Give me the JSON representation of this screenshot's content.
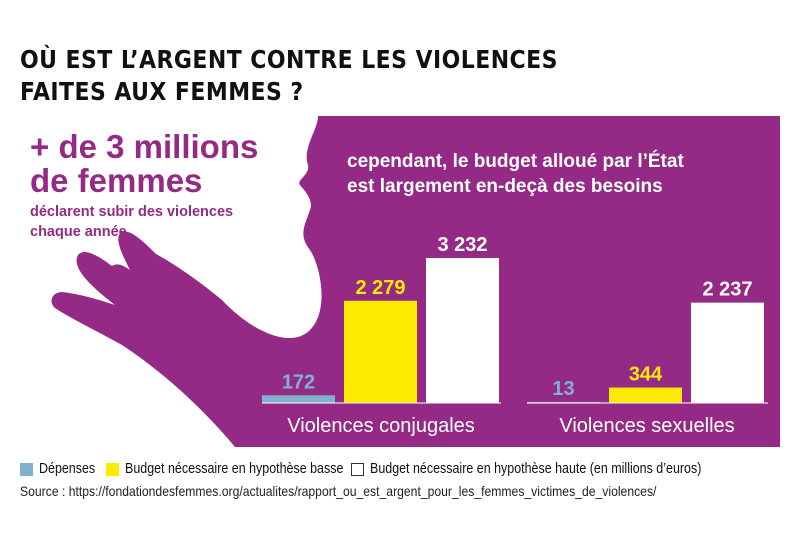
{
  "title": {
    "line1": "OÙ EST L’ARGENT CONTRE LES VIOLENCES",
    "line2": "FAITES AUX FEMMES ?"
  },
  "stat": {
    "big_line1": "+ de 3 millions",
    "big_line2": "de femmes",
    "small_line1": "déclarent subir des violences",
    "small_line2": "chaque année"
  },
  "subhead": {
    "line1": "cependant, le budget alloué par l’État",
    "line2": "est largement en-deçà des besoins"
  },
  "colors": {
    "purple": "#952a86",
    "blue": "#7fb2cd",
    "yellow": "#fcea00",
    "white": "#ffffff"
  },
  "chart_data": {
    "type": "bar",
    "categories": [
      "Violences conjugales",
      "Violences sexuelles"
    ],
    "series": [
      {
        "name": "Dépenses",
        "values": [
          172,
          13
        ],
        "labels": [
          "172",
          "13"
        ]
      },
      {
        "name": "Budget nécessaire en hypothèse basse",
        "values": [
          2279,
          344
        ],
        "labels": [
          "2 279",
          "344"
        ]
      },
      {
        "name": "Budget nécessaire en hypothèse haute (en millions d’euros)",
        "values": [
          3232,
          2237
        ],
        "labels": [
          "3 232",
          "2 237"
        ]
      }
    ],
    "legend_position": "bottom",
    "grid": false
  },
  "source": "Source : https://fondationdesfemmes.org/actualites/rapport_ou_est_argent_pour_les_femmes_victimes_de_violences/"
}
